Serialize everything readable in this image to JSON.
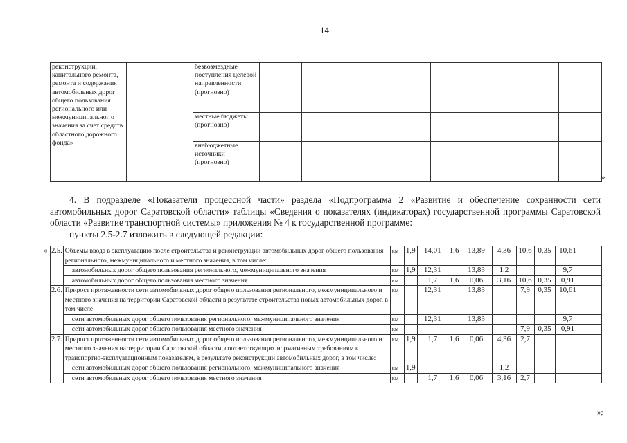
{
  "page_number": "14",
  "top_table": {
    "left_text": "реконструкции, капитального ремонта, ремонта и содержания автомобильных дорог общего пользования регионального или межмуниципальног о значения за счет средств областного дорожного фонда»",
    "sources": [
      "безвозмездные поступления целевой направленности (прогнозно)",
      "местные бюджеты (прогнозно)",
      "внебюджетные источники (прогнозно)"
    ],
    "closing": "»."
  },
  "paragraph": {
    "line1": "4. В подразделе «Показатели процессной части» раздела «Подпрограмма 2 «Развитие и обеспечение сохранности сети автомобильных дорог Саратовской области» таблицы «Сведения о показателях (индикаторах) государственной программы Саратовской области «Развитие транспортной системы» приложения № 4 к государственной программе:",
    "line2": "пункты 2.5-2.7 изложить в следующей редакции:"
  },
  "indicator_table": {
    "open_quote": "«",
    "close_quote": "»;",
    "rows": [
      {
        "num": "2.5.",
        "text": "Объемы ввода в эксплуатацию после строительства и реконструкции автомобильных дорог общего пользования регионального, межмуниципального и местного значения, в том числе:",
        "unit": "км",
        "values": [
          "1,9",
          "14,01",
          "1,6",
          "13,89",
          "4,36",
          "10,6",
          "0,35",
          "10,61",
          ""
        ]
      },
      {
        "num": "",
        "text": "автомобильных дорог общего пользования регионального, межмуниципального значения",
        "unit": "км",
        "values": [
          "1,9",
          "12,31",
          "",
          "13,83",
          "1,2",
          "",
          "",
          "9,7",
          ""
        ],
        "sub": true
      },
      {
        "num": "",
        "text": "автомобильных дорог общего пользования местного значения",
        "unit": "км",
        "values": [
          "",
          "1,7",
          "1,6",
          "0,06",
          "3,16",
          "10,6",
          "0,35",
          "0,91",
          ""
        ],
        "sub": true
      },
      {
        "num": "2.6.",
        "text": "Прирост протяженности сети автомобильных дорог общего пользования регионального, межмуниципального и местного значения на территории Саратовской области в результате строительства новых автомобильных дорог, в том числе:",
        "unit": "км",
        "values": [
          "",
          "12,31",
          "",
          "13,83",
          "",
          "7,9",
          "0,35",
          "10,61",
          ""
        ]
      },
      {
        "num": "",
        "text": "сети автомобильных дорог общего пользования регионального, межмуниципального значения",
        "unit": "км",
        "values": [
          "",
          "12,31",
          "",
          "13,83",
          "",
          "",
          "",
          "9,7",
          ""
        ],
        "sub": true
      },
      {
        "num": "",
        "text": "сети автомобильных дорог общего пользования местного значения",
        "unit": "км",
        "values": [
          "",
          "",
          "",
          "",
          "",
          "7,9",
          "0,35",
          "0,91",
          ""
        ],
        "sub": true
      },
      {
        "num": "2.7.",
        "text": "Прирост протяженности сети автомобильных дорог общего пользования регионального, межмуниципального и местного значения на территории Саратовской области, соответствующих нормативным требованиям к транспортно-эксплуатационным показателям, в результате реконструкции автомобильных дорог, в том числе:",
        "unit": "км",
        "values": [
          "1,9",
          "1,7",
          "1,6",
          "0,06",
          "4,36",
          "2,7",
          "",
          "",
          ""
        ]
      },
      {
        "num": "",
        "text": "сети автомобильных дорог общего пользования регионального, межмуниципального значения",
        "unit": "км",
        "values": [
          "1,9",
          "",
          "",
          "",
          "1,2",
          "",
          "",
          "",
          ""
        ],
        "sub": true
      },
      {
        "num": "",
        "text": "сети автомобильных дорог общего пользования местного значения",
        "unit": "км",
        "values": [
          "",
          "1,7",
          "1,6",
          "0,06",
          "3,16",
          "2,7",
          "",
          "",
          ""
        ],
        "sub": true
      }
    ]
  }
}
